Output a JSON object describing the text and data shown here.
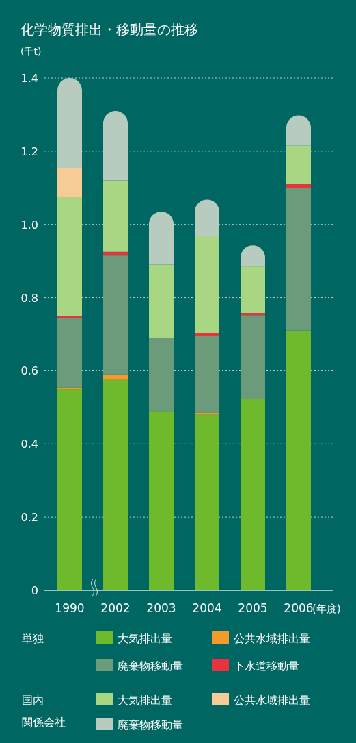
{
  "chart_data": {
    "type": "bar",
    "stacked": true,
    "title": "化学物質排出・移動量の推移",
    "ylabel": "(千t)",
    "xlabel": "(年度)",
    "categories": [
      "1990",
      "2002",
      "2003",
      "2004",
      "2005",
      "2006"
    ],
    "series": [
      {
        "name": "大気排出量",
        "color": "#6fba2c",
        "values": [
          0.55,
          0.575,
          0.49,
          0.48,
          0.524,
          0.71
        ]
      },
      {
        "name": "公共水域排出量",
        "color": "#f39a2d",
        "values": [
          0.005,
          0.015,
          0,
          0.005,
          0,
          0
        ]
      },
      {
        "name": "廃棄物移動量",
        "color": "#6b9b7a",
        "values": [
          0.19,
          0.325,
          0.2,
          0.21,
          0.228,
          0.39
        ]
      },
      {
        "name": "下水道移動量",
        "color": "#e8323f",
        "values": [
          0.005,
          0.01,
          0,
          0.008,
          0.006,
          0.01
        ]
      },
      {
        "name": "大気排出量",
        "color": "#a9d682",
        "values": [
          0.325,
          0.195,
          0.2,
          0.265,
          0.127,
          0.105
        ]
      },
      {
        "name": "公共水域排出量",
        "color": "#f6cb96",
        "values": [
          0.08,
          0,
          0,
          0,
          0,
          0
        ]
      },
      {
        "name": "廃棄物移動量",
        "color": "#b7ccbe",
        "values": [
          0.245,
          0.19,
          0.145,
          0.1,
          0.058,
          0.083
        ]
      }
    ],
    "ylim": [
      0,
      1.4
    ],
    "yticks": [
      0,
      0.2,
      0.4,
      0.6,
      0.8,
      {
        "value": 1.0,
        "label": "1.0"
      },
      1.2,
      1.4
    ],
    "grid": "y",
    "legend": "bottom",
    "annotations": [
      "単独",
      "国内",
      "関係会社"
    ]
  }
}
